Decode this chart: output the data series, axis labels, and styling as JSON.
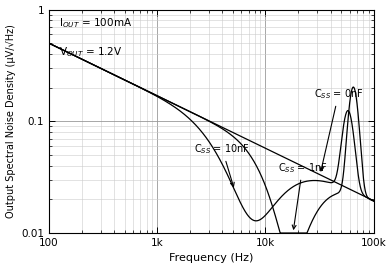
{
  "xlabel": "Frequency (Hz)",
  "ylabel": "Output Spectral Noise Density (μV/√Hz)",
  "xlim": [
    100,
    100000
  ],
  "ylim": [
    0.01,
    1
  ],
  "xticks": [
    100,
    1000,
    10000,
    100000
  ],
  "xticklabels": [
    "100",
    "1k",
    "10k",
    "100k"
  ],
  "yticks": [
    0.01,
    0.1,
    1
  ],
  "yticklabels": [
    "0.01",
    "0.1",
    "1"
  ],
  "line_color": "#000000",
  "bg_color": "#ffffff",
  "grid_major_color": "#999999",
  "grid_minor_color": "#cccccc",
  "figsize": [
    3.92,
    2.69
  ],
  "dpi": 100,
  "annotation_text_1": "I$_{OUT}$ = 100mA",
  "annotation_text_2": "V$_{OUT}$ = 1.2V"
}
